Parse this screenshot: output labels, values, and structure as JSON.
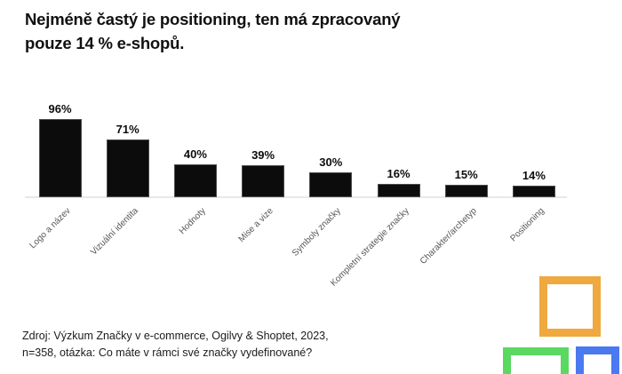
{
  "title": {
    "line1": "Nejméně častý je positioning, ten má zpracovaný",
    "line2": "pouze 14 % e-shopů."
  },
  "source": {
    "line1": "Zdroj: Výzkum Značky v e-commerce, Ogilvy & Shoptet, 2023,",
    "line2": "n=358, otázka: Co máte v rámci své značky vydefinované?"
  },
  "chart_data": {
    "type": "bar",
    "title": "Nejméně častý je positioning, ten má zpracovaný pouze 14 % e-shopů.",
    "categories": [
      "Logo a název",
      "Vizuální identita",
      "Hodnoty",
      "Mise a vize",
      "Symboly značky",
      "Kompletní strategie značky",
      "Charakter/archetyp",
      "Positioning"
    ],
    "values": [
      96,
      71,
      40,
      39,
      30,
      16,
      15,
      14
    ],
    "unit": "%",
    "xlabel": "",
    "ylabel": "",
    "ylim": [
      0,
      100
    ],
    "grid": false,
    "legend": "none",
    "bar_color": "#0c0c0c",
    "axis_color": "#e8e8e8",
    "source_note": "Zdroj: Výzkum Značky v e-commerce, Ogilvy & Shoptet, 2023, n=358, otázka: Co máte v rámci své značky vydefinované?"
  },
  "decor": {
    "squares": [
      {
        "name": "orange-square",
        "color": "#EFA93F"
      },
      {
        "name": "green-square",
        "color": "#5AD862"
      },
      {
        "name": "blue-square",
        "color": "#4A79F0"
      }
    ]
  }
}
